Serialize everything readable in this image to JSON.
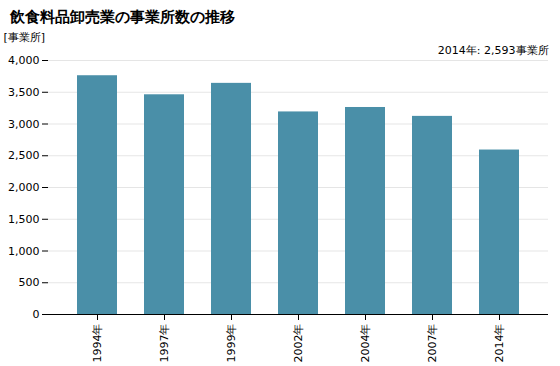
{
  "chart_data": {
    "type": "bar",
    "title": "飲食料品卸売業の事業所数の推移",
    "ylabel": "[事業所]",
    "annotation": "2014年: 2,593事業所",
    "categories": [
      "1994年",
      "1997年",
      "1999年",
      "2002年",
      "2004年",
      "2007年",
      "2014年"
    ],
    "values": [
      3760,
      3460,
      3640,
      3190,
      3260,
      3120,
      2590
    ],
    "color": "#4a8fa8",
    "ylim": [
      0,
      4000
    ],
    "yticks": [
      0,
      500,
      {
        "value": 1000,
        "label": "1,000"
      },
      {
        "value": 1500,
        "label": "1,500"
      },
      {
        "value": 2000,
        "label": "2,000"
      },
      {
        "value": 2500,
        "label": "2,500"
      },
      {
        "value": 3000,
        "label": "3,000"
      },
      {
        "value": 3500,
        "label": "3,500"
      },
      {
        "value": 4000,
        "label": "4,000"
      }
    ],
    "grid": true
  }
}
